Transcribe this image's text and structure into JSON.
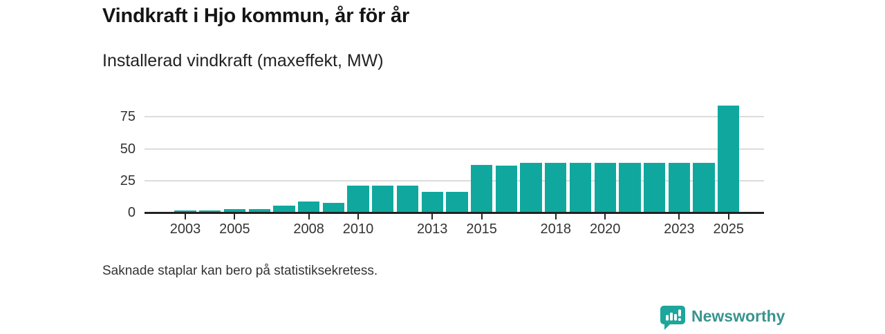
{
  "header": {
    "title": "Vindkraft i Hjo kommun, år för år",
    "subtitle": "Installerad vindkraft (maxeffekt, MW)"
  },
  "chart_data": {
    "type": "bar",
    "title": "Vindkraft i Hjo kommun, år för år",
    "subtitle": "Installerad vindkraft (maxeffekt, MW)",
    "unit": "MW",
    "categories": [
      2002,
      2003,
      2004,
      2005,
      2006,
      2007,
      2008,
      2009,
      2010,
      2011,
      2012,
      2013,
      2014,
      2015,
      2016,
      2017,
      2018,
      2019,
      2020,
      2021,
      2022,
      2023,
      2024,
      2025
    ],
    "values": [
      null,
      1.5,
      1.5,
      2.5,
      2.5,
      5.5,
      8.5,
      7.5,
      21,
      21,
      21,
      16.5,
      16.5,
      37.5,
      37,
      39,
      39,
      39,
      39,
      39,
      39,
      39,
      39,
      84
    ],
    "xlabel": "",
    "ylabel": "Installerad vindkraft (maxeffekt, MW)",
    "ylim": [
      0,
      90
    ],
    "yticks": [
      0,
      25,
      50,
      75
    ],
    "xtick_years": [
      2003,
      2005,
      2008,
      2010,
      2013,
      2015,
      2018,
      2020,
      2023,
      2025
    ],
    "grid": true,
    "legend": false,
    "bar_color": "#10a89e",
    "missing_note": "Saknade staplar kan bero på statistiksekretess."
  },
  "footnote": "Saknade staplar kan bero på statistiksekretess.",
  "logo": {
    "text": "Newsworthy",
    "icon": "bar-chart-speech-bubble-icon",
    "text_color": "#38948f",
    "icon_color": "#1ca69c"
  },
  "colors": {
    "bar": "#10a89e",
    "axis": "#222222",
    "gridline": "#dcdcdc",
    "title": "#151515",
    "text": "#333333",
    "background": "#ffffff"
  }
}
